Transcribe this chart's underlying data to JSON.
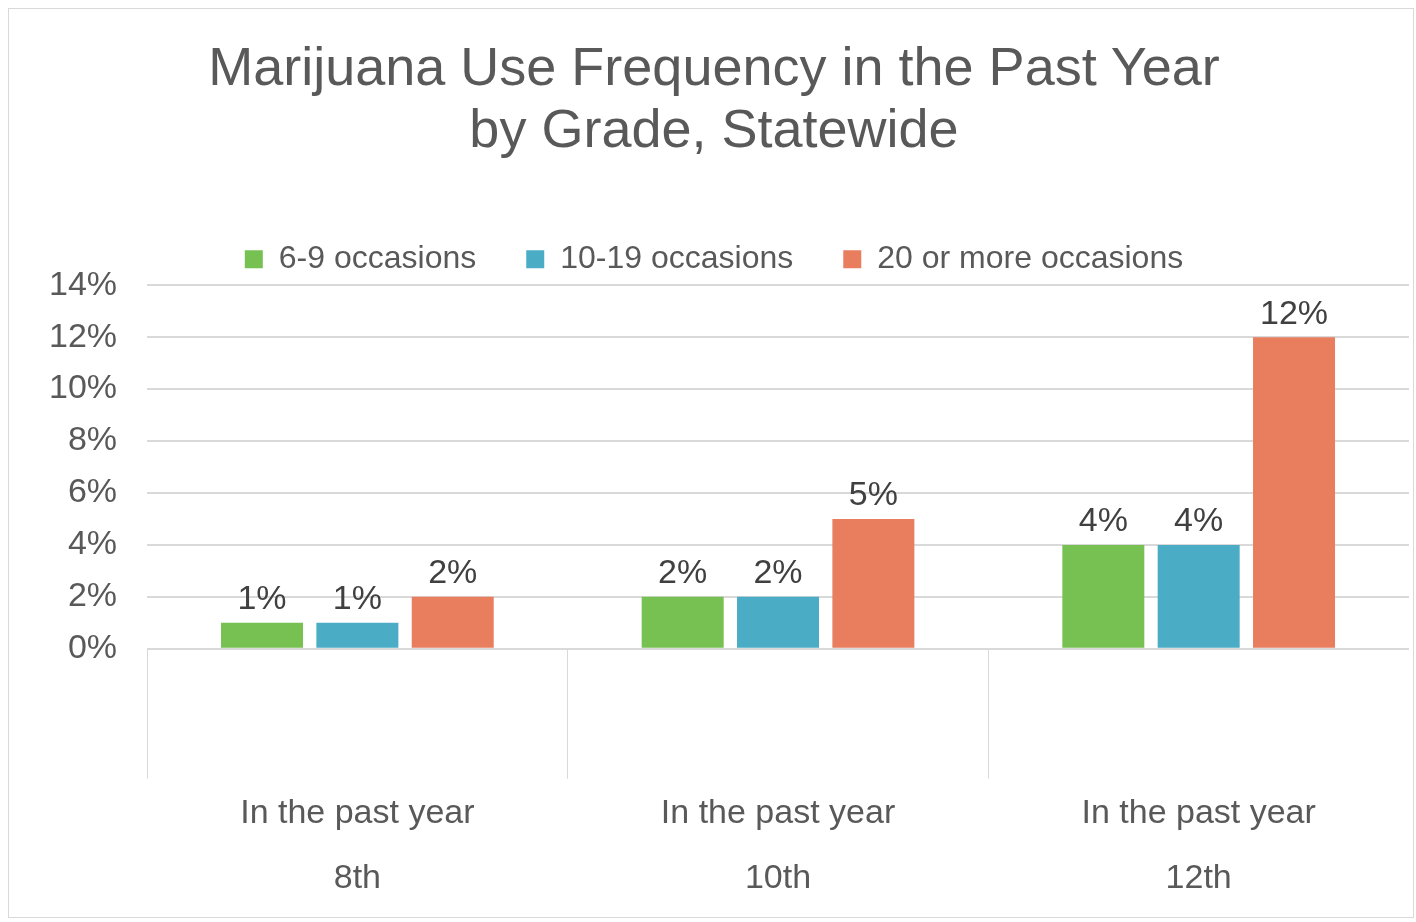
{
  "chart_data": {
    "type": "bar",
    "title": "Marijuana Use Frequency in the Past Year\nby Grade, Statewide",
    "categories": [
      "In the past year\n8th",
      "In the past year\n10th",
      "In the past year\n12th"
    ],
    "series": [
      {
        "name": "6-9 occasions",
        "color": "#76c152",
        "values": [
          1,
          2,
          4
        ]
      },
      {
        "name": "10-19 occasions",
        "color": "#4bacc6",
        "values": [
          1,
          2,
          4
        ]
      },
      {
        "name": "20 or more occasions",
        "color": "#e97e5f",
        "values": [
          2,
          5,
          12
        ]
      }
    ],
    "ylim": [
      0,
      14
    ],
    "yticks": [
      {
        "value": 0,
        "label": "0%"
      },
      {
        "value": 2,
        "label": "2%"
      },
      {
        "value": 4,
        "label": "4%"
      },
      {
        "value": 6,
        "label": "6%"
      },
      {
        "value": 8,
        "label": "8%"
      },
      {
        "value": 10,
        "label": "10%"
      },
      {
        "value": 12,
        "label": "12%"
      },
      {
        "value": 14,
        "label": "14%"
      }
    ],
    "value_labels": [
      [
        "1%",
        "2%",
        "4%"
      ],
      [
        "1%",
        "2%",
        "4%"
      ],
      [
        "2%",
        "5%",
        "12%"
      ]
    ],
    "grid": "y",
    "legend": "top"
  }
}
